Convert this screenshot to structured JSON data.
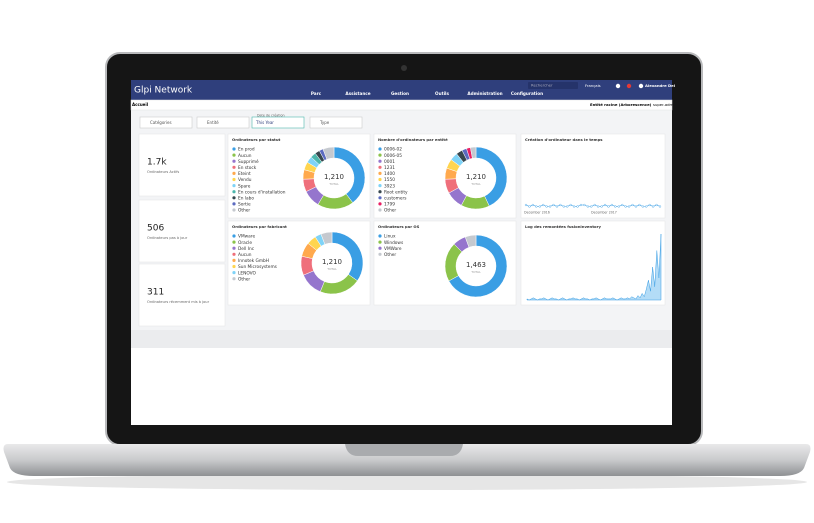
{
  "nav": {
    "brand": "Glpi Network",
    "menu": [
      "Parc",
      "Assistance",
      "Gestion",
      "Outils",
      "Administration",
      "Configuration"
    ],
    "search": "Rechercher",
    "lang": "Français",
    "user": "Alexandre Del"
  },
  "subbar": {
    "breadcrumb": "Accueil",
    "entity": "Entité racine (Arborescence)",
    "profile": "super-adm"
  },
  "filters": [
    {
      "label": "Catégories"
    },
    {
      "label": "Entité"
    },
    {
      "caption": "Date de création",
      "label": "This Year"
    },
    {
      "label": "Type"
    }
  ],
  "cards": [
    {
      "value": "1.7k",
      "label": "Ordinateurs Actifs"
    },
    {
      "value": "506",
      "label": "Ordinateurs pas à jour"
    },
    {
      "value": "311",
      "label": "Ordinateurs récemment mis à jour"
    }
  ],
  "donuts": [
    {
      "title": "Ordinateurs par statut",
      "total": "1,210",
      "total_label": "TOTAL",
      "segments": [
        {
          "name": "En prod",
          "color": "#3a9ee4",
          "value": 480
        },
        {
          "name": "Aucun",
          "color": "#8bc34a",
          "value": 230
        },
        {
          "name": "Supprimé",
          "color": "#9575cd",
          "value": 110
        },
        {
          "name": "En stock",
          "color": "#ef6f7b",
          "value": 80
        },
        {
          "name": "Eteint",
          "color": "#ffa94d",
          "value": 60
        },
        {
          "name": "Vendu",
          "color": "#ffd54f",
          "value": 50
        },
        {
          "name": "Spare",
          "color": "#7fd3f7",
          "value": 40
        },
        {
          "name": "En cours d'installation",
          "color": "#4db6ac",
          "value": 35
        },
        {
          "name": "En labo",
          "color": "#37474f",
          "value": 30
        },
        {
          "name": "Sortie",
          "color": "#5c6bc0",
          "value": 25
        },
        {
          "name": "Other",
          "color": "#c5c9cf",
          "value": 70
        }
      ]
    },
    {
      "title": "Nombre d'ordinateurs par entité",
      "total": "1,210",
      "total_label": "TOTAL",
      "segments": [
        {
          "name": "0006-02",
          "color": "#3a9ee4",
          "value": 520
        },
        {
          "name": "0006-05",
          "color": "#8bc34a",
          "value": 180
        },
        {
          "name": "0001",
          "color": "#9575cd",
          "value": 110
        },
        {
          "name": "1231",
          "color": "#ef6f7b",
          "value": 90
        },
        {
          "name": "1400",
          "color": "#ffa94d",
          "value": 70
        },
        {
          "name": "1550",
          "color": "#ffd54f",
          "value": 60
        },
        {
          "name": "3923",
          "color": "#7fd3f7",
          "value": 50
        },
        {
          "name": "Root entity",
          "color": "#37474f",
          "value": 40
        },
        {
          "name": "customers",
          "color": "#5c6bc0",
          "value": 30
        },
        {
          "name": "1799",
          "color": "#e91e63",
          "value": 25
        },
        {
          "name": "Other",
          "color": "#c5c9cf",
          "value": 35
        }
      ]
    },
    {
      "title": "Ordinateurs par fabricant",
      "total": "1,210",
      "total_label": "TOTAL",
      "segments": [
        {
          "name": "VMware",
          "color": "#3a9ee4",
          "value": 420
        },
        {
          "name": "Oracle",
          "color": "#8bc34a",
          "value": 260
        },
        {
          "name": "Dell Inc",
          "color": "#9575cd",
          "value": 150
        },
        {
          "name": "Aucun",
          "color": "#ef6f7b",
          "value": 120
        },
        {
          "name": "Innotek GmbH",
          "color": "#ffa94d",
          "value": 90
        },
        {
          "name": "Sun Microsystems",
          "color": "#ffd54f",
          "value": 60
        },
        {
          "name": "LENOVO",
          "color": "#7fd3f7",
          "value": 40
        },
        {
          "name": "Other",
          "color": "#c5c9cf",
          "value": 70
        }
      ]
    },
    {
      "title": "Ordinateurs par OS",
      "total": "1,463",
      "total_label": "TOTAL",
      "segments": [
        {
          "name": "Linux",
          "color": "#3a9ee4",
          "value": 980
        },
        {
          "name": "Windows",
          "color": "#8bc34a",
          "value": 300
        },
        {
          "name": "VMWare",
          "color": "#9575cd",
          "value": 100
        },
        {
          "name": "Other",
          "color": "#c5c9cf",
          "value": 83
        }
      ]
    }
  ],
  "line": {
    "title": "Création d'ordinateur dans le temps",
    "x_labels": [
      "December 2016",
      "December 2017"
    ],
    "values": [
      2,
      1,
      2,
      1,
      1,
      2,
      1,
      1,
      2,
      1,
      2,
      1,
      1,
      2,
      1,
      1,
      2,
      2,
      1,
      1,
      2,
      1,
      1,
      2,
      1,
      2,
      1,
      1,
      2,
      1,
      1,
      2,
      1,
      2,
      1,
      1,
      2,
      1,
      2,
      1
    ]
  },
  "log": {
    "title": "Log des remontées fusioninventory",
    "values": [
      1,
      0,
      1,
      2,
      1,
      0,
      1,
      1,
      2,
      1,
      0,
      1,
      2,
      1,
      1,
      0,
      1,
      2,
      1,
      0,
      1,
      1,
      2,
      1,
      1,
      0,
      1,
      2,
      1,
      1,
      0,
      1,
      1,
      2,
      1,
      0,
      1,
      2,
      1,
      1,
      1,
      2,
      1,
      0,
      1,
      2,
      1,
      1,
      2,
      1,
      3,
      2,
      1,
      4,
      2,
      6,
      3,
      10,
      18,
      8,
      30,
      12,
      45,
      20,
      60
    ]
  }
}
